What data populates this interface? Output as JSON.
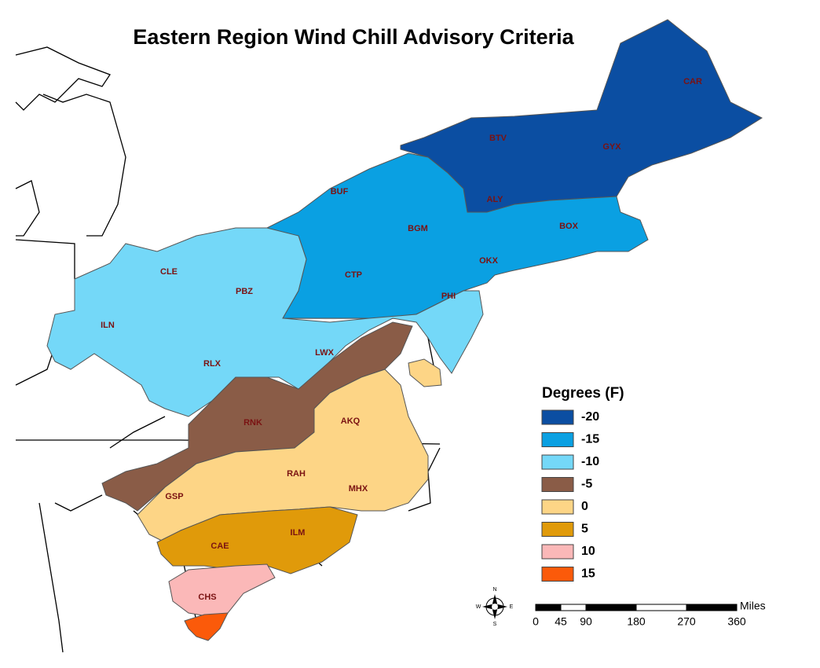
{
  "title": "Eastern Region Wind Chill Advisory Criteria",
  "legend": {
    "title": "Degrees (F)",
    "items": [
      {
        "label": "-20",
        "color": "#0b4ea2"
      },
      {
        "label": "-15",
        "color": "#0aa0e2"
      },
      {
        "label": "-10",
        "color": "#74d8f8"
      },
      {
        "label": "-5",
        "color": "#8a5c47"
      },
      {
        "label": "0",
        "color": "#fdd586"
      },
      {
        "label": "5",
        "color": "#e09a0a"
      },
      {
        "label": "10",
        "color": "#fbb8b8"
      },
      {
        "label": "15",
        "color": "#fb5a0a"
      }
    ]
  },
  "offices": [
    "CAR",
    "BTV",
    "GYX",
    "BUF",
    "ALY",
    "BGM",
    "BOX",
    "OKX",
    "CLE",
    "CTP",
    "PBZ",
    "PHI",
    "ILN",
    "LWX",
    "RLX",
    "AKQ",
    "RNK",
    "RAH",
    "GSP",
    "MHX",
    "ILM",
    "CAE",
    "CHS"
  ],
  "scale": {
    "unit": "Miles",
    "ticks": [
      0,
      45,
      90,
      180,
      270,
      360
    ]
  },
  "compass": {
    "north": "N",
    "south": "S",
    "east": "E",
    "west": "W"
  }
}
